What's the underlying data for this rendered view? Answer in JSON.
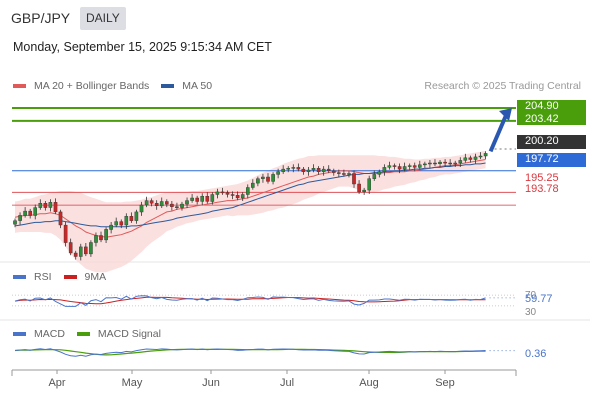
{
  "header": {
    "symbol": "GBP/JPY",
    "period": "DAILY",
    "datetime": "Monday, September 15, 2025 9:15:34 AM CET"
  },
  "legend_main": [
    {
      "label": "MA 20 + Bollinger Bands",
      "color": "#e05a5a"
    },
    {
      "label": "MA 50",
      "color": "#2d5a9c"
    }
  ],
  "credit": "Research © 2025 Trading Central",
  "levels": {
    "r2": {
      "value": "204.90",
      "color": "#4a9e0b"
    },
    "r1": {
      "value": "203.42",
      "color": "#4a9e0b"
    },
    "last": {
      "value": "200.20",
      "color": "#333333"
    },
    "pivot": {
      "value": "197.72",
      "color": "#2f6bd6"
    },
    "s1": {
      "value": "195.25",
      "color": "#d9393f"
    },
    "s2": {
      "value": "193.78",
      "color": "#d9393f"
    }
  },
  "legend_rsi": [
    {
      "label": "RSI",
      "color": "#4a74c9"
    },
    {
      "label": "9MA",
      "color": "#cc1f1f"
    }
  ],
  "rsi": {
    "value": "59.77",
    "upper": "70",
    "lower": "30"
  },
  "legend_macd": [
    {
      "label": "MACD",
      "color": "#4a74c9"
    },
    {
      "label": "MACD Signal",
      "color": "#4a9e0b"
    }
  ],
  "macd": {
    "value": "0.36"
  },
  "chart_data": {
    "type": "candlestick",
    "x_tick_labels": [
      "Apr",
      "May",
      "Jun",
      "Jul",
      "Aug",
      "Sep"
    ],
    "y_range": [
      187.5,
      206.5
    ],
    "close": [
      192.0,
      192.6,
      193.1,
      192.6,
      193.5,
      194.0,
      193.5,
      194.1,
      193.0,
      191.5,
      189.5,
      188.3,
      187.9,
      189.0,
      188.2,
      189.5,
      190.3,
      189.8,
      191.0,
      191.5,
      191.9,
      191.5,
      192.5,
      192.0,
      193.0,
      193.8,
      194.3,
      194.0,
      193.7,
      194.2,
      193.9,
      193.6,
      193.5,
      193.9,
      194.3,
      194.6,
      194.2,
      194.8,
      194.2,
      195.0,
      195.3,
      195.2,
      195.0,
      194.9,
      194.6,
      195.0,
      195.8,
      196.3,
      196.8,
      197.0,
      196.5,
      197.3,
      197.6,
      197.9,
      198.0,
      198.1,
      197.9,
      197.6,
      197.8,
      198.0,
      197.6,
      197.9,
      197.7,
      197.5,
      197.4,
      197.3,
      197.4,
      196.2,
      195.3,
      195.5,
      196.8,
      197.3,
      197.6,
      198.1,
      198.3,
      198.2,
      197.9,
      198.2,
      198.3,
      198.1,
      198.4,
      198.5,
      198.6,
      198.5,
      198.7,
      198.6,
      198.5,
      198.6,
      198.9,
      199.2,
      199.0,
      199.3,
      199.4,
      199.7
    ],
    "ma20": [
      192.4,
      192.5,
      192.6,
      192.6,
      192.7,
      192.8,
      192.8,
      192.9,
      192.8,
      192.6,
      192.2,
      191.8,
      191.4,
      191.1,
      190.7,
      190.5,
      190.3,
      190.2,
      190.1,
      190.2,
      190.3,
      190.4,
      190.6,
      190.8,
      191.1,
      191.4,
      191.8,
      192.1,
      192.4,
      192.7,
      193.0,
      193.1,
      193.3,
      193.4,
      193.5,
      193.6,
      193.7,
      193.8,
      193.9,
      194.0,
      194.1,
      194.2,
      194.3,
      194.3,
      194.4,
      194.5,
      194.6,
      194.8,
      195.0,
      195.2,
      195.4,
      195.6,
      195.8,
      196.0,
      196.2,
      196.4,
      196.6,
      196.8,
      197.0,
      197.1,
      197.3,
      197.4,
      197.5,
      197.6,
      197.7,
      197.7,
      197.7,
      197.6,
      197.5,
      197.4,
      197.4,
      197.4,
      197.4,
      197.5,
      197.5,
      197.6,
      197.6,
      197.6,
      197.7,
      197.7,
      197.8,
      197.9,
      198.0,
      198.1,
      198.2,
      198.3,
      198.3,
      198.4,
      198.5,
      198.6,
      198.7,
      198.8,
      198.9,
      199.0
    ],
    "ma50": [
      191.4,
      191.5,
      191.6,
      191.7,
      191.8,
      191.8,
      191.9,
      191.9,
      192.0,
      192.0,
      191.9,
      191.8,
      191.7,
      191.6,
      191.5,
      191.4,
      191.4,
      191.3,
      191.3,
      191.3,
      191.3,
      191.3,
      191.3,
      191.4,
      191.4,
      191.5,
      191.6,
      191.7,
      191.8,
      191.9,
      192.0,
      192.1,
      192.3,
      192.4,
      192.5,
      192.6,
      192.7,
      192.8,
      192.9,
      193.1,
      193.2,
      193.3,
      193.4,
      193.5,
      193.7,
      193.9,
      194.1,
      194.3,
      194.5,
      194.7,
      194.9,
      195.1,
      195.3,
      195.5,
      195.7,
      195.9,
      196.1,
      196.2,
      196.4,
      196.5,
      196.6,
      196.7,
      196.8,
      196.9,
      197.0,
      197.1,
      197.2,
      197.3,
      197.3,
      197.4,
      197.4,
      197.5,
      197.5,
      197.6,
      197.6,
      197.7,
      197.7,
      197.8,
      197.8,
      197.9,
      197.9,
      198.0,
      198.0,
      198.1,
      198.1,
      198.2,
      198.2,
      198.3,
      198.3,
      198.4,
      198.4,
      198.5,
      198.5,
      198.6
    ],
    "bb_width": [
      1.8,
      1.8,
      1.9,
      1.9,
      2.0,
      2.1,
      2.2,
      2.3,
      2.5,
      2.8,
      3.2,
      3.6,
      3.9,
      4.1,
      4.2,
      4.2,
      4.2,
      4.1,
      4.0,
      3.9,
      3.8,
      3.7,
      3.6,
      3.4,
      3.2,
      3.0,
      2.8,
      2.6,
      2.5,
      2.4,
      2.2,
      2.1,
      2.0,
      1.9,
      1.8,
      1.8,
      1.7,
      1.7,
      1.7,
      1.7,
      1.7,
      1.7,
      1.7,
      1.8,
      1.8,
      1.9,
      2.0,
      2.1,
      2.2,
      2.3,
      2.3,
      2.4,
      2.4,
      2.5,
      2.5,
      2.5,
      2.5,
      2.4,
      2.4,
      2.3,
      2.2,
      2.1,
      2.0,
      1.9,
      1.8,
      1.8,
      1.8,
      1.9,
      2.0,
      2.1,
      2.1,
      2.1,
      2.0,
      1.9,
      1.8,
      1.7,
      1.6,
      1.5,
      1.4,
      1.3,
      1.2,
      1.2,
      1.1,
      1.1,
      1.0,
      1.0,
      1.0,
      1.0,
      1.0,
      1.0,
      1.0,
      1.0,
      1.0,
      1.0
    ],
    "rsi_value": 59.77,
    "rsi_levels": [
      30,
      70
    ],
    "macd_value": 0.36,
    "forecast_target": 204.9
  }
}
